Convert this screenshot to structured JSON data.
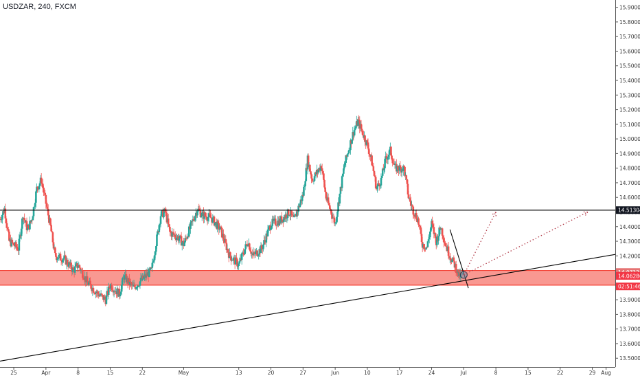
{
  "symbol_title": "USDZAR, 240, FXCM",
  "colors": {
    "up": "#26a69a",
    "down": "#ef5350",
    "wick": "#555555",
    "line": "#000000",
    "zone": "#f44336",
    "price_label": "#f23645",
    "arrow": "#b23a48"
  },
  "chart_data": {
    "type": "candlestick",
    "title": "USDZAR, 240, FXCM",
    "ylim": [
      13.44,
      15.95
    ],
    "y_ticks": [
      13.5,
      13.6,
      13.7,
      13.8,
      13.9,
      14.0,
      14.1,
      14.2,
      14.3,
      14.4,
      14.5,
      14.6,
      14.7,
      14.8,
      14.9,
      15.0,
      15.1,
      15.2,
      15.3,
      15.4,
      15.5,
      15.6,
      15.7,
      15.8,
      15.9
    ],
    "y_tick_labels": [
      "13.50000",
      "13.60000",
      "13.70000",
      "13.80000",
      "13.90000",
      "14.00000",
      "14.10000",
      "14.20000",
      "14.30000",
      "14.40000",
      "14.50000",
      "14.60000",
      "14.70000",
      "14.80000",
      "14.90000",
      "15.00000",
      "15.10000",
      "15.20000",
      "15.30000",
      "15.40000",
      "15.50000",
      "15.60000",
      "15.70000",
      "15.80000",
      "15.90000"
    ],
    "x_range": [
      "2019-03-22",
      "2019-08-03"
    ],
    "x_ticks": [
      {
        "date": "2019-03-25",
        "label": "25"
      },
      {
        "date": "2019-04-01",
        "label": "Apr"
      },
      {
        "date": "2019-04-08",
        "label": "8"
      },
      {
        "date": "2019-04-15",
        "label": "15"
      },
      {
        "date": "2019-04-22",
        "label": "22"
      },
      {
        "date": "2019-05-01",
        "label": "May"
      },
      {
        "date": "2019-05-13",
        "label": "13"
      },
      {
        "date": "2019-05-20",
        "label": "20"
      },
      {
        "date": "2019-05-27",
        "label": "27"
      },
      {
        "date": "2019-06-03",
        "label": "Jun"
      },
      {
        "date": "2019-06-10",
        "label": "10"
      },
      {
        "date": "2019-06-17",
        "label": "17"
      },
      {
        "date": "2019-06-24",
        "label": "24"
      },
      {
        "date": "2019-07-01",
        "label": "Jul"
      },
      {
        "date": "2019-07-08",
        "label": "8"
      },
      {
        "date": "2019-07-15",
        "label": "15"
      },
      {
        "date": "2019-07-22",
        "label": "22"
      },
      {
        "date": "2019-07-29",
        "label": "29"
      },
      {
        "date": "2019-08-01",
        "label": "Aug"
      }
    ],
    "price_path": [
      {
        "date": "2019-03-22",
        "close": 14.45
      },
      {
        "date": "2019-03-23",
        "close": 14.52
      },
      {
        "date": "2019-03-24",
        "close": 14.3
      },
      {
        "date": "2019-03-26",
        "close": 14.25
      },
      {
        "date": "2019-03-27",
        "close": 14.48
      },
      {
        "date": "2019-03-28",
        "close": 14.38
      },
      {
        "date": "2019-03-29",
        "close": 14.46
      },
      {
        "date": "2019-03-30",
        "close": 14.66
      },
      {
        "date": "2019-03-31",
        "close": 14.72
      },
      {
        "date": "2019-04-02",
        "close": 14.4
      },
      {
        "date": "2019-04-03",
        "close": 14.2
      },
      {
        "date": "2019-04-05",
        "close": 14.18
      },
      {
        "date": "2019-04-07",
        "close": 14.1
      },
      {
        "date": "2019-04-08",
        "close": 14.14
      },
      {
        "date": "2019-04-10",
        "close": 14.02
      },
      {
        "date": "2019-04-12",
        "close": 13.95
      },
      {
        "date": "2019-04-14",
        "close": 13.9
      },
      {
        "date": "2019-04-15",
        "close": 14.0
      },
      {
        "date": "2019-04-17",
        "close": 13.94
      },
      {
        "date": "2019-04-18",
        "close": 14.06
      },
      {
        "date": "2019-04-20",
        "close": 13.98
      },
      {
        "date": "2019-04-22",
        "close": 14.04
      },
      {
        "date": "2019-04-24",
        "close": 14.1
      },
      {
        "date": "2019-04-26",
        "close": 14.48
      },
      {
        "date": "2019-04-27",
        "close": 14.5
      },
      {
        "date": "2019-04-28",
        "close": 14.36
      },
      {
        "date": "2019-04-30",
        "close": 14.32
      },
      {
        "date": "2019-05-01",
        "close": 14.28
      },
      {
        "date": "2019-05-03",
        "close": 14.44
      },
      {
        "date": "2019-05-04",
        "close": 14.52
      },
      {
        "date": "2019-05-05",
        "close": 14.48
      },
      {
        "date": "2019-05-07",
        "close": 14.46
      },
      {
        "date": "2019-05-09",
        "close": 14.38
      },
      {
        "date": "2019-05-11",
        "close": 14.2
      },
      {
        "date": "2019-05-13",
        "close": 14.14
      },
      {
        "date": "2019-05-15",
        "close": 14.3
      },
      {
        "date": "2019-05-16",
        "close": 14.2
      },
      {
        "date": "2019-05-18",
        "close": 14.25
      },
      {
        "date": "2019-05-20",
        "close": 14.42
      },
      {
        "date": "2019-05-22",
        "close": 14.44
      },
      {
        "date": "2019-05-24",
        "close": 14.5
      },
      {
        "date": "2019-05-25",
        "close": 14.44
      },
      {
        "date": "2019-05-27",
        "close": 14.62
      },
      {
        "date": "2019-05-28",
        "close": 14.86
      },
      {
        "date": "2019-05-29",
        "close": 14.72
      },
      {
        "date": "2019-05-31",
        "close": 14.82
      },
      {
        "date": "2019-06-01",
        "close": 14.6
      },
      {
        "date": "2019-06-03",
        "close": 14.42
      },
      {
        "date": "2019-06-05",
        "close": 14.82
      },
      {
        "date": "2019-06-07",
        "close": 15.05
      },
      {
        "date": "2019-06-08",
        "close": 15.12
      },
      {
        "date": "2019-06-10",
        "close": 14.96
      },
      {
        "date": "2019-06-11",
        "close": 14.84
      },
      {
        "date": "2019-06-12",
        "close": 14.66
      },
      {
        "date": "2019-06-13",
        "close": 14.72
      },
      {
        "date": "2019-06-14",
        "close": 14.86
      },
      {
        "date": "2019-06-15",
        "close": 14.92
      },
      {
        "date": "2019-06-16",
        "close": 14.8
      },
      {
        "date": "2019-06-18",
        "close": 14.8
      },
      {
        "date": "2019-06-19",
        "close": 14.6
      },
      {
        "date": "2019-06-20",
        "close": 14.51
      },
      {
        "date": "2019-06-21",
        "close": 14.45
      },
      {
        "date": "2019-06-22",
        "close": 14.28
      },
      {
        "date": "2019-06-23",
        "close": 14.26
      },
      {
        "date": "2019-06-24",
        "close": 14.42
      },
      {
        "date": "2019-06-25",
        "close": 14.3
      },
      {
        "date": "2019-06-26",
        "close": 14.4
      },
      {
        "date": "2019-06-27",
        "close": 14.28
      },
      {
        "date": "2019-06-28",
        "close": 14.2
      },
      {
        "date": "2019-06-29",
        "close": 14.14
      },
      {
        "date": "2019-06-30",
        "close": 14.06
      },
      {
        "date": "2019-07-01",
        "close": 14.07
      }
    ],
    "horizontal_line": {
      "price": 14.513,
      "label": "14.51304"
    },
    "support_zone": {
      "from": 14.0,
      "to": 14.1
    },
    "price_labels": [
      {
        "price": 14.071,
        "label": "14.07124"
      },
      {
        "price": 14.063,
        "label": "14.06286"
      },
      {
        "price": 14.01,
        "label": "02:51:46"
      }
    ],
    "trendlines": [
      {
        "from": {
          "date": "2019-03-22",
          "price": 13.48
        },
        "to": {
          "date": "2019-08-03",
          "price": 14.21
        }
      },
      {
        "from": {
          "date": "2019-06-28",
          "price": 14.38
        },
        "to": {
          "date": "2019-07-02",
          "price": 13.98
        }
      }
    ],
    "projections": [
      {
        "from": {
          "date": "2019-07-01",
          "price": 14.07
        },
        "to": {
          "date": "2019-07-08",
          "price": 14.5
        }
      },
      {
        "from": {
          "date": "2019-07-01",
          "price": 14.07
        },
        "to": {
          "date": "2019-07-28",
          "price": 14.5
        }
      }
    ]
  }
}
